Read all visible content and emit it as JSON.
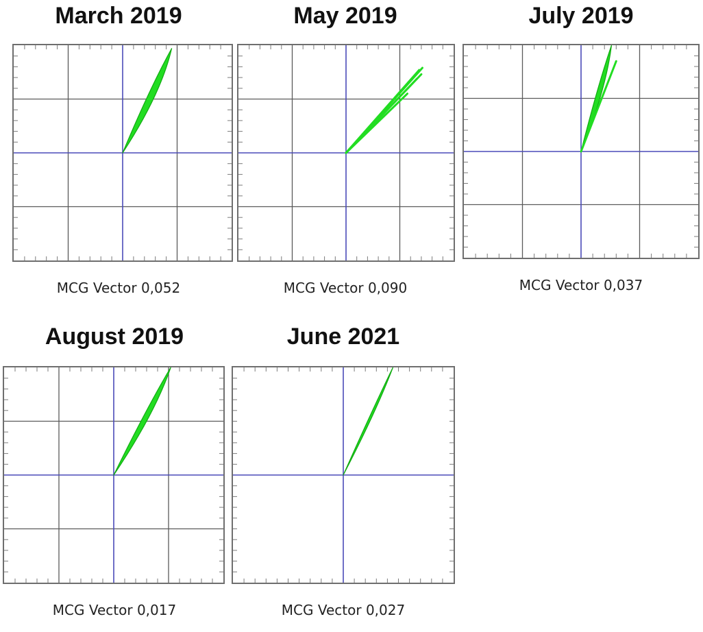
{
  "colors": {
    "background": "#ffffff",
    "frame": "#6e6e6e",
    "grid": "#5a5a5a",
    "tick": "#7a7a7a",
    "axis": "#4a4ab8",
    "trace": "#22dd22",
    "trace_edge": "#11aa11"
  },
  "chart_data": [
    {
      "type": "line",
      "title": "March 2019",
      "caption": "MCG Vector 0,052",
      "grid": true,
      "axis_lines": "center",
      "xlim": [
        -1,
        1
      ],
      "ylim": [
        -1,
        1
      ],
      "series": [
        {
          "x": [
            0.0,
            0.45
          ],
          "y": [
            0.0,
            0.97
          ],
          "band_width": 0.09
        }
      ]
    },
    {
      "type": "line",
      "title": "May 2019",
      "caption": "MCG Vector 0,090",
      "grid": true,
      "axis_lines": "center",
      "xlim": [
        -1,
        1
      ],
      "ylim": [
        -1,
        1
      ],
      "series": [
        {
          "x": [
            0.0,
            0.71
          ],
          "y": [
            0.0,
            0.79
          ]
        },
        {
          "x": [
            0.0,
            0.7
          ],
          "y": [
            0.0,
            0.73
          ]
        },
        {
          "x": [
            0.0,
            0.66
          ],
          "y": [
            0.0,
            0.69
          ]
        },
        {
          "x": [
            0.0,
            0.57
          ],
          "y": [
            0.0,
            0.55
          ]
        },
        {
          "x": [
            0.0,
            0.68
          ],
          "y": [
            0.0,
            0.77
          ]
        }
      ]
    },
    {
      "type": "line",
      "title": "July 2019",
      "caption": "MCG Vector 0,037",
      "grid": true,
      "axis_lines": "center",
      "xlim": [
        -1,
        1
      ],
      "ylim": [
        -1,
        1
      ],
      "series": [
        {
          "x": [
            0.0,
            0.26
          ],
          "y": [
            0.0,
            1.0
          ],
          "band_width": 0.06
        },
        {
          "x": [
            0.0,
            0.3
          ],
          "y": [
            0.0,
            0.85
          ]
        }
      ]
    },
    {
      "type": "line",
      "title": "August 2019",
      "caption": "MCG Vector 0,017",
      "grid": true,
      "axis_lines": "center",
      "xlim": [
        -1,
        1
      ],
      "ylim": [
        -1,
        1
      ],
      "series": [
        {
          "x": [
            0.0,
            0.52
          ],
          "y": [
            0.0,
            1.0
          ],
          "band_width": 0.07
        }
      ]
    },
    {
      "type": "line",
      "title": "June 2021",
      "caption": "MCG Vector 0,027",
      "grid": false,
      "axis_lines": "center",
      "xlim": [
        -1,
        1
      ],
      "ylim": [
        -1,
        1
      ],
      "series": [
        {
          "x": [
            0.0,
            0.45
          ],
          "y": [
            0.0,
            1.0
          ],
          "band_width": 0.03
        }
      ]
    }
  ]
}
